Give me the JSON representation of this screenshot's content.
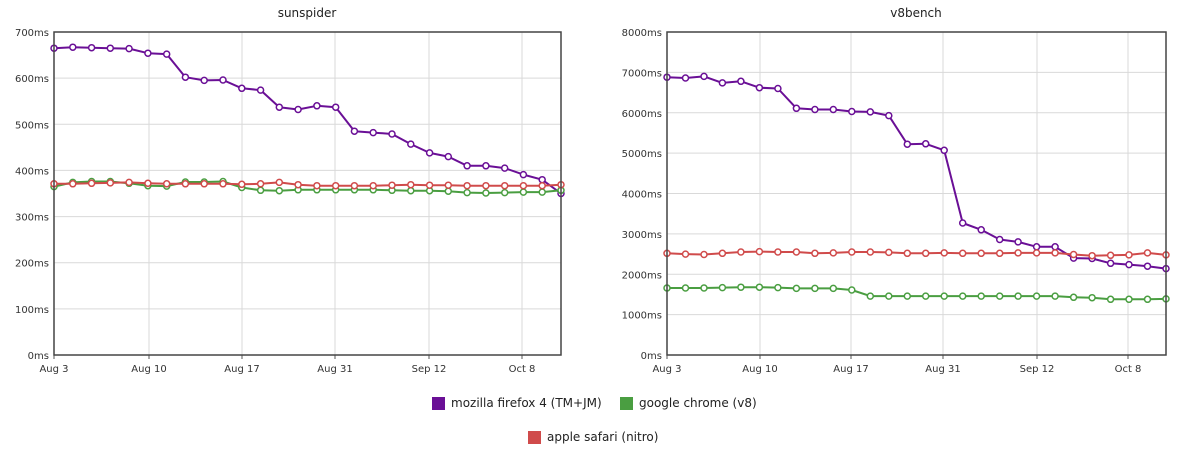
{
  "chart_data": [
    {
      "type": "line",
      "title": "sunspider",
      "xlabel": "",
      "ylabel": "",
      "ylim": [
        0,
        700
      ],
      "y_ticks": [
        "0ms",
        "100ms",
        "200ms",
        "300ms",
        "400ms",
        "500ms",
        "600ms",
        "700ms"
      ],
      "x_ticks": [
        "Aug 3",
        "Aug 10",
        "Aug 17",
        "Aug 31",
        "Sep 12",
        "Oct 8"
      ],
      "grid": true,
      "series": [
        {
          "name": "mozilla firefox 4 (TM+JM)",
          "color": "#6a0f96",
          "values": [
            665,
            667,
            666,
            665,
            664,
            654,
            652,
            602,
            595,
            596,
            578,
            574,
            537,
            532,
            540,
            537,
            485,
            482,
            479,
            457,
            438,
            430,
            410,
            410,
            405,
            391,
            380,
            350
          ]
        },
        {
          "name": "google chrome (v8)",
          "color": "#4a9e41",
          "values": [
            365,
            374,
            376,
            376,
            372,
            367,
            366,
            375,
            375,
            376,
            363,
            357,
            356,
            358,
            358,
            358,
            358,
            358,
            357,
            356,
            356,
            355,
            352,
            351,
            352,
            353,
            353,
            357
          ]
        },
        {
          "name": "apple safari (nitro)",
          "color": "#d04b4b",
          "values": [
            371,
            371,
            372,
            373,
            374,
            372,
            371,
            371,
            371,
            371,
            370,
            371,
            374,
            369,
            367,
            367,
            367,
            367,
            368,
            369,
            368,
            368,
            367,
            367,
            367,
            367,
            367,
            369
          ]
        }
      ]
    },
    {
      "type": "line",
      "title": "v8bench",
      "xlabel": "",
      "ylabel": "",
      "ylim": [
        0,
        8000
      ],
      "y_ticks": [
        "0ms",
        "1000ms",
        "2000ms",
        "3000ms",
        "4000ms",
        "5000ms",
        "6000ms",
        "7000ms",
        "8000ms"
      ],
      "x_ticks": [
        "Aug 3",
        "Aug 10",
        "Aug 17",
        "Aug 31",
        "Sep 12",
        "Oct 8"
      ],
      "grid": true,
      "series": [
        {
          "name": "mozilla firefox 4 (TM+JM)",
          "color": "#6a0f96",
          "values": [
            6880,
            6860,
            6900,
            6740,
            6780,
            6620,
            6600,
            6110,
            6080,
            6080,
            6030,
            6020,
            5930,
            5220,
            5230,
            5070,
            3270,
            3100,
            2860,
            2800,
            2680,
            2680,
            2400,
            2390,
            2270,
            2240,
            2200,
            2140
          ]
        },
        {
          "name": "google chrome (v8)",
          "color": "#4a9e41",
          "values": [
            1660,
            1660,
            1660,
            1670,
            1680,
            1680,
            1670,
            1650,
            1650,
            1650,
            1610,
            1460,
            1460,
            1460,
            1460,
            1460,
            1460,
            1460,
            1460,
            1460,
            1460,
            1460,
            1430,
            1420,
            1380,
            1380,
            1380,
            1390
          ]
        },
        {
          "name": "apple safari (nitro)",
          "color": "#d04b4b",
          "values": [
            2520,
            2500,
            2490,
            2520,
            2550,
            2560,
            2550,
            2550,
            2520,
            2530,
            2550,
            2550,
            2540,
            2520,
            2520,
            2530,
            2520,
            2520,
            2520,
            2530,
            2530,
            2530,
            2490,
            2460,
            2470,
            2480,
            2530,
            2480
          ]
        }
      ]
    }
  ],
  "legend": {
    "placement": "bottom",
    "items": [
      {
        "label": "mozilla firefox 4 (TM+JM)",
        "color": "#6a0f96"
      },
      {
        "label": "google chrome (v8)",
        "color": "#4a9e41"
      },
      {
        "label": "apple safari (nitro)",
        "color": "#d04b4b"
      }
    ]
  }
}
